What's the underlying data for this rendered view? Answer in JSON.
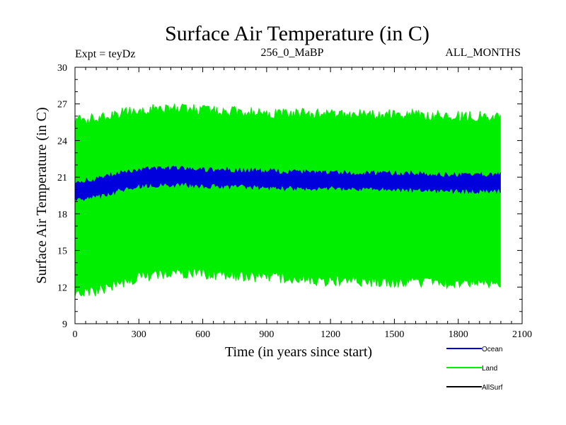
{
  "chart_data": {
    "type": "line",
    "title": "Surface Air Temperature (in C)",
    "subtitle_left": "Expt = teyDz",
    "subtitle_center": "256_0_MaBP",
    "subtitle_right": "ALL_MONTHS",
    "xlabel": "Time (in years since start)",
    "ylabel": "Surface Air Temperature (in C)",
    "xlim": [
      0,
      2100
    ],
    "ylim": [
      9,
      30
    ],
    "x_ticks": [
      "0",
      "300",
      "600",
      "900",
      "1200",
      "1500",
      "1800",
      "2100"
    ],
    "y_ticks": [
      "9",
      "12",
      "15",
      "18",
      "21",
      "24",
      "27",
      "30"
    ],
    "series": [
      {
        "name": "Land",
        "color": "#00ee00",
        "x": [
          0,
          100,
          200,
          300,
          400,
          500,
          600,
          700,
          800,
          900,
          1000,
          1100,
          1200,
          1300,
          1400,
          1500,
          1600,
          1700,
          1800,
          1900,
          2000
        ],
        "upper": [
          25.6,
          25.8,
          26.2,
          26.4,
          26.6,
          26.6,
          26.5,
          26.4,
          26.3,
          26.3,
          26.2,
          26.2,
          26.2,
          26.1,
          26.1,
          26.1,
          26.1,
          26.0,
          26.0,
          26.0,
          26.0
        ],
        "lower": [
          11.4,
          11.7,
          12.2,
          12.8,
          13.1,
          13.2,
          13.1,
          13.0,
          12.9,
          12.8,
          12.7,
          12.6,
          12.5,
          12.5,
          12.4,
          12.4,
          12.4,
          12.3,
          12.3,
          12.3,
          12.3
        ]
      },
      {
        "name": "Ocean",
        "color": "#0000dd",
        "x": [
          0,
          100,
          200,
          300,
          400,
          500,
          600,
          700,
          800,
          900,
          1000,
          1100,
          1200,
          1300,
          1400,
          1500,
          1600,
          1700,
          1800,
          1900,
          2000
        ],
        "upper": [
          20.6,
          20.8,
          21.3,
          21.6,
          21.7,
          21.7,
          21.6,
          21.6,
          21.5,
          21.5,
          21.4,
          21.4,
          21.4,
          21.3,
          21.3,
          21.3,
          21.3,
          21.2,
          21.2,
          21.2,
          21.2
        ],
        "lower": [
          19.2,
          19.4,
          19.9,
          20.3,
          20.4,
          20.4,
          20.3,
          20.3,
          20.2,
          20.2,
          20.1,
          20.1,
          20.1,
          20.0,
          20.0,
          20.0,
          20.0,
          19.9,
          19.9,
          19.9,
          19.9
        ]
      },
      {
        "name": "AllSurf",
        "color": "#000000",
        "x": [],
        "upper": [],
        "lower": []
      }
    ],
    "legend": [
      "Ocean",
      "Land",
      "AllSurf"
    ],
    "legend_placement": "bottom-right",
    "grid": false
  }
}
